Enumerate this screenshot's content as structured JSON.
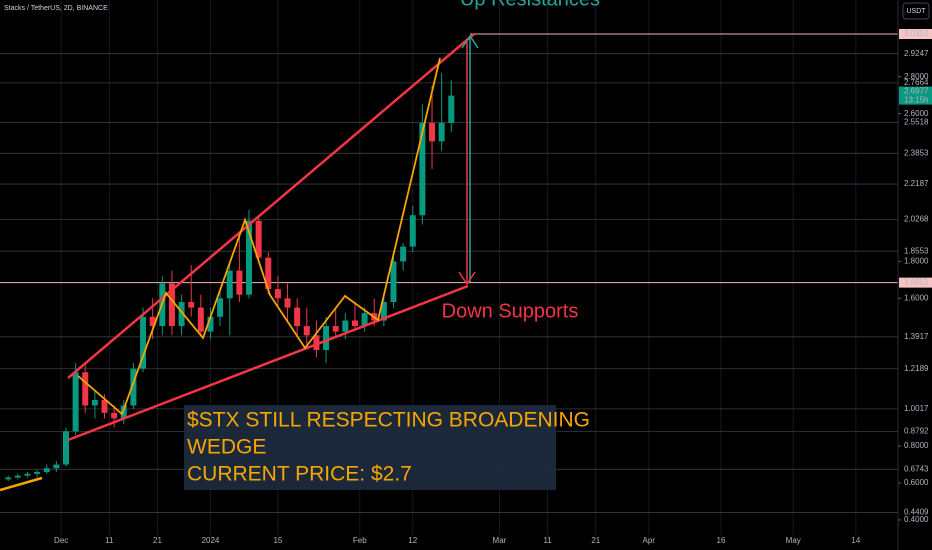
{
  "header": {
    "symbol": "Stacks / TetherUS, 2D, BINANCE",
    "currency_button": "USDT"
  },
  "chart_data": {
    "type": "candlestick",
    "up_color": "#089981",
    "down_color": "#f23645",
    "xlim": [
      -12.7,
      173.75
    ],
    "ylim": [
      0.3187,
      3.2153
    ],
    "xticks": [
      {
        "value": 0,
        "label": "Dec"
      },
      {
        "value": 10,
        "label": "11"
      },
      {
        "value": 20,
        "label": "21"
      },
      {
        "value": 31,
        "label": "2024"
      },
      {
        "value": 45,
        "label": "15"
      },
      {
        "value": 62,
        "label": "Feb"
      },
      {
        "value": 73,
        "label": "12"
      },
      {
        "value": 91,
        "label": "Mar"
      },
      {
        "value": 101,
        "label": "11"
      },
      {
        "value": 111,
        "label": "21"
      },
      {
        "value": 122,
        "label": "Apr"
      },
      {
        "value": 137,
        "label": "16"
      },
      {
        "value": 152,
        "label": "May"
      },
      {
        "value": 165,
        "label": "14"
      }
    ],
    "yticks": [
      {
        "value": 2.8,
        "label": "2.8000"
      },
      {
        "value": 2.6,
        "label": "2.6000"
      },
      {
        "value": 1.8,
        "label": "1.8000"
      },
      {
        "value": 1.6,
        "label": "1.6000"
      },
      {
        "value": 0.8,
        "label": "0.8000"
      },
      {
        "value": 0.6,
        "label": "0.6000"
      },
      {
        "value": 0.4,
        "label": "0.4000"
      }
    ],
    "levels": [
      {
        "value": 3.0312,
        "highlight": true
      },
      {
        "value": 2.9247,
        "highlight": false
      },
      {
        "value": 2.7664,
        "highlight": false
      },
      {
        "value": 2.5518,
        "highlight": false
      },
      {
        "value": 2.3853,
        "highlight": false
      },
      {
        "value": 2.2187,
        "highlight": false
      },
      {
        "value": 2.0268,
        "highlight": false
      },
      {
        "value": 1.8553,
        "highlight": false
      },
      {
        "value": 1.6851,
        "highlight": true
      },
      {
        "value": 1.3917,
        "highlight": false
      },
      {
        "value": 1.2189,
        "highlight": false
      },
      {
        "value": 1.0017,
        "highlight": false
      },
      {
        "value": 0.8792,
        "highlight": false
      },
      {
        "value": 0.6743,
        "highlight": false
      },
      {
        "value": 0.4409,
        "highlight": false
      }
    ],
    "countdown": "13:15h",
    "x": [
      -11,
      -9,
      -7,
      -5,
      -3,
      -1,
      1,
      3,
      5,
      7,
      9,
      11,
      13,
      15,
      17,
      19,
      21,
      23,
      25,
      27,
      29,
      31,
      33,
      35,
      37,
      39,
      41,
      43,
      45,
      47,
      49,
      51,
      53,
      55,
      57,
      59,
      61,
      63,
      65,
      67,
      69,
      71,
      73,
      75,
      77,
      79,
      81
    ],
    "open": [
      0.62,
      0.63,
      0.64,
      0.65,
      0.66,
      0.68,
      0.7,
      0.88,
      1.2,
      1.02,
      1.05,
      0.98,
      0.95,
      1.02,
      1.22,
      1.5,
      1.45,
      1.68,
      1.45,
      1.58,
      1.55,
      1.42,
      1.5,
      1.6,
      1.75,
      1.62,
      2.02,
      1.82,
      1.65,
      1.6,
      1.55,
      1.45,
      1.4,
      1.32,
      1.45,
      1.42,
      1.48,
      1.45,
      1.52,
      1.48,
      1.58,
      1.8,
      1.88,
      2.05,
      2.55,
      2.45,
      2.55
    ],
    "high": [
      0.64,
      0.65,
      0.66,
      0.67,
      0.7,
      0.72,
      0.9,
      1.25,
      1.24,
      1.1,
      1.08,
      1.02,
      1.05,
      1.25,
      1.55,
      1.6,
      1.72,
      1.75,
      1.62,
      1.78,
      1.62,
      1.55,
      1.65,
      1.8,
      1.95,
      2.08,
      2.05,
      1.85,
      1.72,
      1.68,
      1.6,
      1.55,
      1.48,
      1.5,
      1.55,
      1.52,
      1.58,
      1.55,
      1.6,
      1.62,
      1.85,
      1.9,
      2.1,
      2.65,
      2.75,
      2.82,
      2.78
    ],
    "low": [
      0.61,
      0.62,
      0.63,
      0.63,
      0.65,
      0.66,
      0.69,
      0.86,
      0.98,
      0.95,
      0.95,
      0.9,
      0.92,
      1.0,
      1.2,
      1.38,
      1.4,
      1.4,
      1.4,
      1.5,
      1.4,
      1.38,
      1.45,
      1.4,
      1.58,
      1.6,
      1.8,
      1.62,
      1.55,
      1.48,
      1.4,
      1.35,
      1.28,
      1.25,
      1.4,
      1.38,
      1.42,
      1.42,
      1.45,
      1.45,
      1.55,
      1.75,
      1.85,
      2.0,
      2.3,
      2.4,
      2.5
    ],
    "close": [
      0.63,
      0.64,
      0.65,
      0.66,
      0.68,
      0.7,
      0.88,
      1.2,
      1.02,
      1.05,
      0.98,
      0.95,
      1.02,
      1.22,
      1.5,
      1.45,
      1.68,
      1.45,
      1.58,
      1.55,
      1.42,
      1.5,
      1.6,
      1.75,
      1.62,
      2.02,
      1.82,
      1.65,
      1.6,
      1.55,
      1.45,
      1.4,
      1.32,
      1.45,
      1.42,
      1.48,
      1.45,
      1.52,
      1.48,
      1.58,
      1.8,
      1.88,
      2.05,
      2.55,
      2.45,
      2.55,
      2.6977
    ],
    "annotations": {
      "resistance": "Up Resistances",
      "support": "Down Supports",
      "note_lines": [
        "$STX STILL RESPECTING BROADENING",
        "WEDGE",
        "CURRENT PRICE: $2.7"
      ]
    }
  }
}
